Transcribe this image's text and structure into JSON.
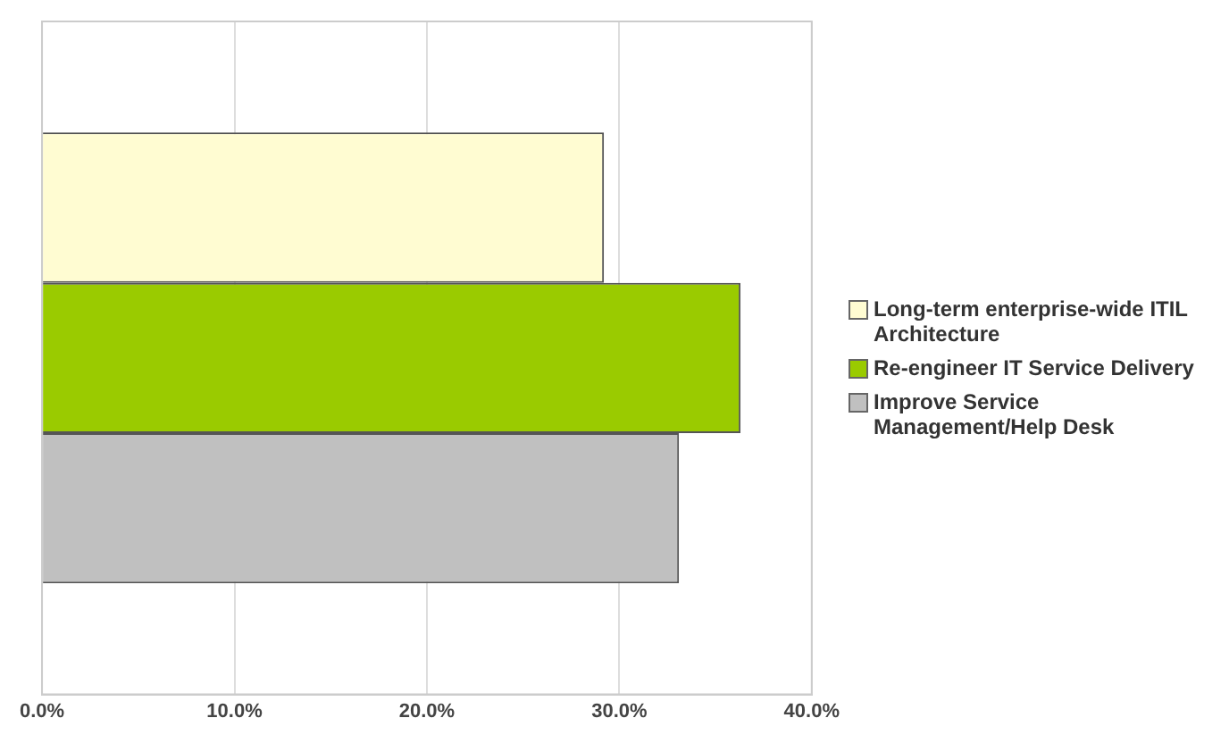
{
  "chart_data": {
    "type": "bar",
    "orientation": "horizontal",
    "categories": [
      null
    ],
    "series": [
      {
        "name": "Long-term enterprise-wide ITIL Architecture",
        "color": "#fffcd2",
        "values": [
          29.2
        ]
      },
      {
        "name": "Re-engineer IT Service Delivery",
        "color": "#9acb00",
        "values": [
          36.3
        ]
      },
      {
        "name": "Improve Service Management/Help Desk",
        "color": "#c0c0c0",
        "values": [
          33.1
        ]
      }
    ],
    "xlim": [
      0,
      40
    ],
    "xticks": [
      {
        "value": 0,
        "label": "0.0%"
      },
      {
        "value": 10,
        "label": "10.0%"
      },
      {
        "value": 20,
        "label": "20.0%"
      },
      {
        "value": 30,
        "label": "30.0%"
      },
      {
        "value": 40,
        "label": "40.0%"
      }
    ],
    "grid": "x",
    "legend": "right"
  }
}
